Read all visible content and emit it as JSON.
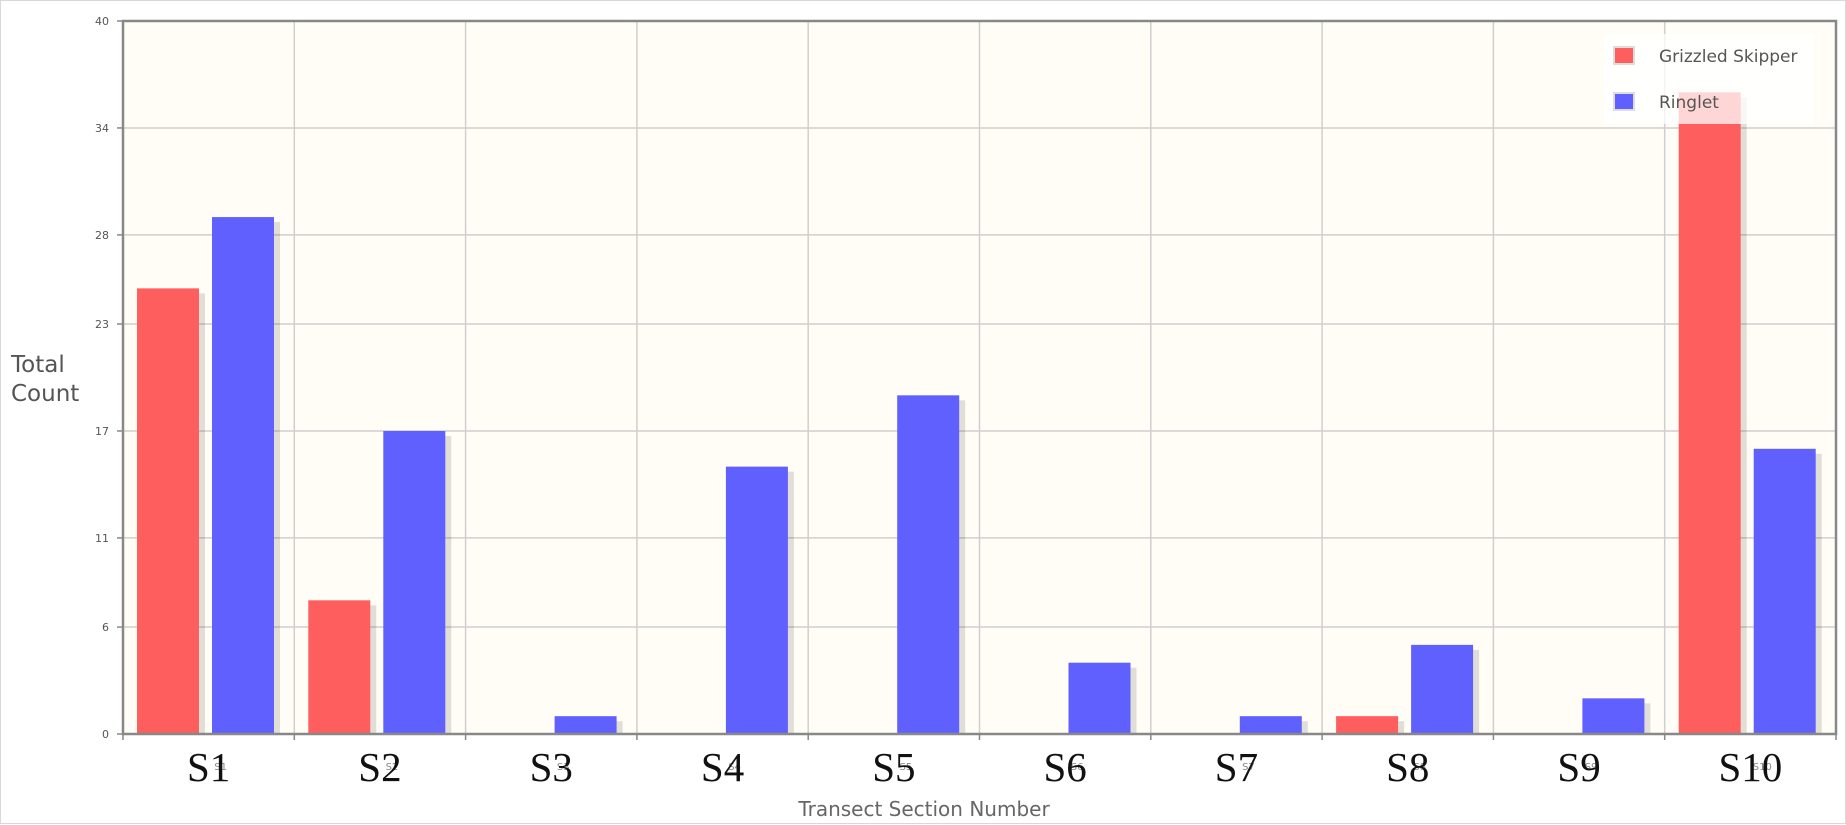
{
  "chart_data": {
    "type": "bar",
    "categories": [
      "S1",
      "S2",
      "S3",
      "S4",
      "S5",
      "S6",
      "S7",
      "S8",
      "S9",
      "S10"
    ],
    "series": [
      {
        "name": "Grizzled Skipper",
        "color": "#ff5e5e",
        "values": [
          25,
          7.5,
          0,
          0,
          0,
          0,
          0,
          1,
          0,
          36
        ]
      },
      {
        "name": "Ringlet",
        "color": "#6060ff",
        "values": [
          29,
          17,
          1,
          15,
          19,
          4,
          1,
          5,
          2,
          16
        ]
      }
    ],
    "xlabel": "Transect Section Number",
    "ylabel_lines": [
      "Total",
      "Count"
    ],
    "yticks": [
      0,
      6,
      11,
      17,
      23,
      28,
      34,
      40
    ],
    "ylim": [
      0,
      40
    ],
    "grid": true,
    "legend_position": "top-right",
    "plot_background": "#fffdf5"
  }
}
